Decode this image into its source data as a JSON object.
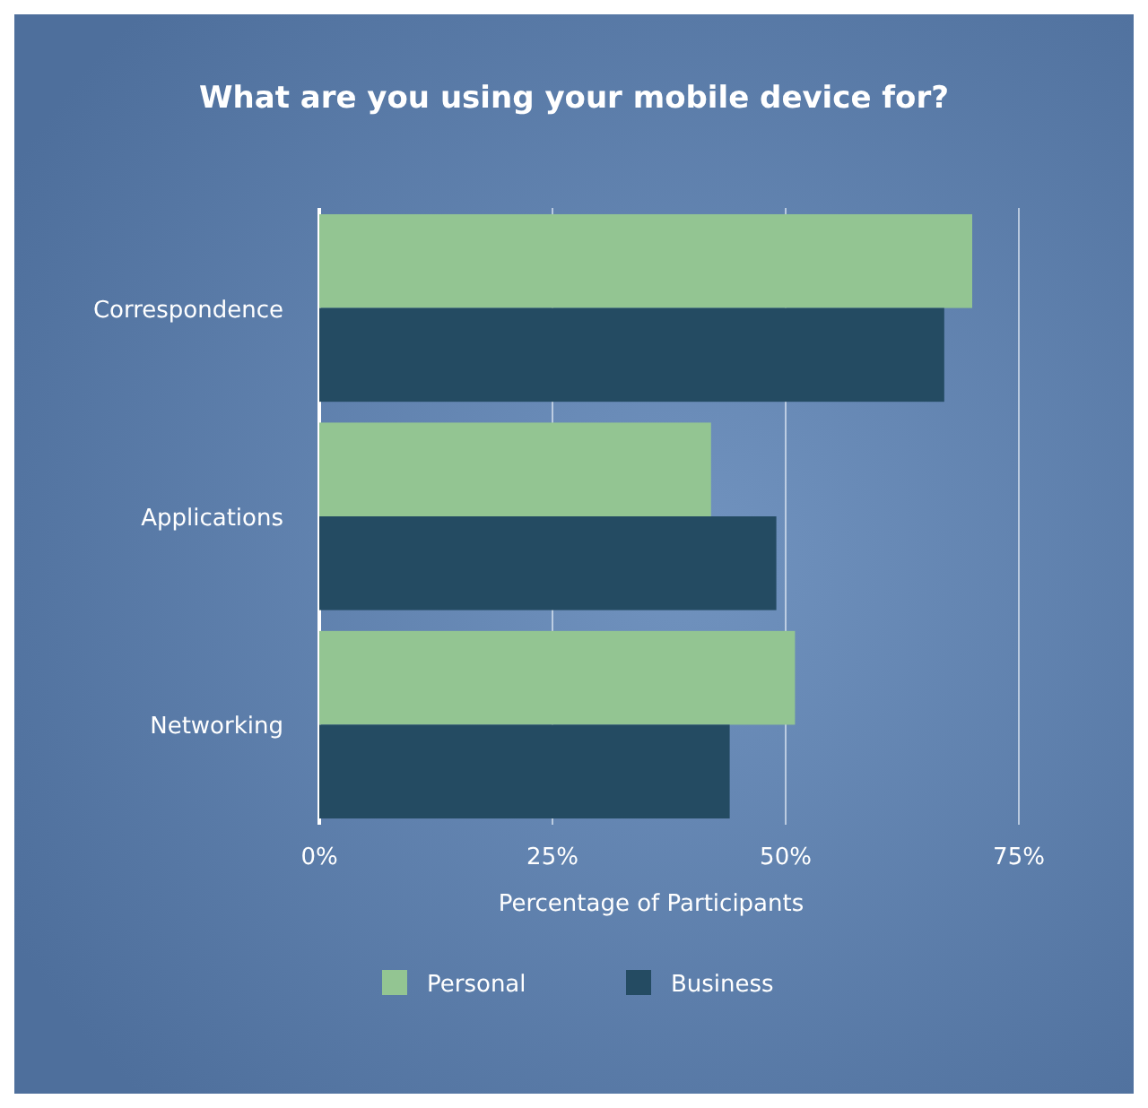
{
  "chart_data": {
    "type": "bar",
    "orientation": "horizontal",
    "title": "What are you using your mobile device for?",
    "xlabel": "Percentage of Participants",
    "categories": [
      "Correspondence",
      "Applications",
      "Networking"
    ],
    "series": [
      {
        "name": "Personal",
        "color": "#93c592",
        "values": [
          70,
          42,
          51
        ]
      },
      {
        "name": "Business",
        "color": "#244b62",
        "values": [
          67,
          49,
          44
        ]
      }
    ],
    "xlim": [
      0,
      75
    ],
    "xticks": [
      {
        "value": 0,
        "label": "0%"
      },
      {
        "value": 25,
        "label": "25%"
      },
      {
        "value": 50,
        "label": "50%"
      },
      {
        "value": 75,
        "label": "75%"
      }
    ],
    "grid": "x",
    "legend": "bottom"
  }
}
